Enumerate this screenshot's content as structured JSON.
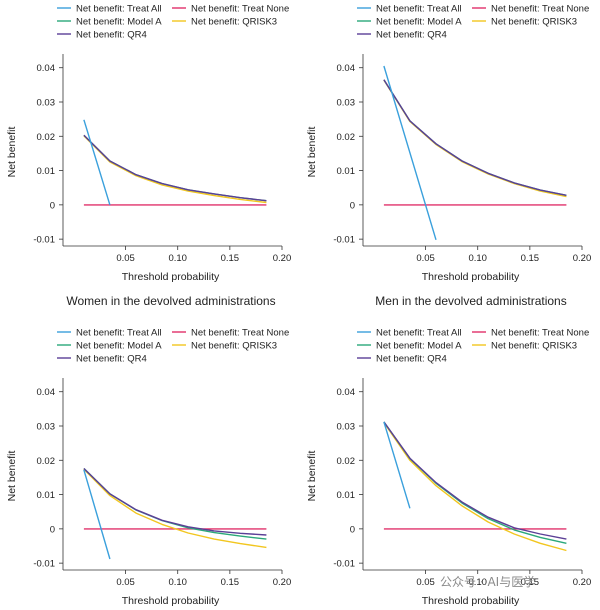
{
  "colors": {
    "treat_all": "#3aa0dc",
    "treat_none": "#e0306a",
    "model_a": "#2ba87a",
    "qrisk3": "#f2c61f",
    "qr4": "#5b3f96"
  },
  "watermark": "公众号 · AI与医学",
  "chart_data": [
    {
      "type": "line",
      "title": "",
      "xlabel": "Threshold probability",
      "ylabel": "Net benefit",
      "xlim": [
        -0.01,
        0.2
      ],
      "ylim": [
        -0.012,
        0.044
      ],
      "xticks": [
        0.05,
        0.1,
        0.15,
        0.2
      ],
      "xtick_labels": [
        "0.05",
        "0.10",
        "0.15",
        "0.20"
      ],
      "yticks": [
        -0.01,
        0,
        0.01,
        0.02,
        0.03,
        0.04
      ],
      "ytick_labels": [
        "-0.01",
        "0",
        "0.01",
        "0.02",
        "0.03",
        "0.04"
      ],
      "legend": [
        "Net benefit: Treat All",
        "Net benefit: Treat None",
        "Net benefit: Model A",
        "Net benefit: QRISK3",
        "Net benefit: QR4"
      ],
      "series": [
        {
          "name": "Net benefit: Treat All",
          "key": "treat_all",
          "x": [
            0.01,
            0.035
          ],
          "y": [
            0.0248,
            0.0
          ]
        },
        {
          "name": "Net benefit: Treat None",
          "key": "treat_none",
          "x": [
            0.01,
            0.185
          ],
          "y": [
            0,
            0
          ]
        },
        {
          "name": "Net benefit: Model A",
          "key": "model_a",
          "x": [
            0.01,
            0.035,
            0.06,
            0.085,
            0.11,
            0.135,
            0.16,
            0.185
          ],
          "y": [
            0.0203,
            0.0128,
            0.0088,
            0.0062,
            0.0044,
            0.0032,
            0.0021,
            0.0012
          ]
        },
        {
          "name": "Net benefit: QRISK3",
          "key": "qrisk3",
          "x": [
            0.01,
            0.035,
            0.06,
            0.085,
            0.11,
            0.135,
            0.16,
            0.185
          ],
          "y": [
            0.0201,
            0.0125,
            0.0085,
            0.0058,
            0.004,
            0.0027,
            0.0016,
            0.0007
          ]
        },
        {
          "name": "Net benefit: QR4",
          "key": "qr4",
          "x": [
            0.01,
            0.035,
            0.06,
            0.085,
            0.11,
            0.135,
            0.16,
            0.185
          ],
          "y": [
            0.0203,
            0.0128,
            0.0088,
            0.0062,
            0.0044,
            0.0032,
            0.0021,
            0.0012
          ]
        }
      ]
    },
    {
      "type": "line",
      "title": "",
      "xlabel": "Threshold probability",
      "ylabel": "Net benefit",
      "xlim": [
        -0.01,
        0.2
      ],
      "ylim": [
        -0.012,
        0.044
      ],
      "xticks": [
        0.05,
        0.1,
        0.15,
        0.2
      ],
      "xtick_labels": [
        "0.05",
        "0.10",
        "0.15",
        "0.20"
      ],
      "yticks": [
        -0.01,
        0,
        0.01,
        0.02,
        0.03,
        0.04
      ],
      "ytick_labels": [
        "-0.01",
        "0",
        "0.01",
        "0.02",
        "0.03",
        "0.04"
      ],
      "legend": [
        "Net benefit: Treat All",
        "Net benefit: Treat None",
        "Net benefit: Model A",
        "Net benefit: QRISK3",
        "Net benefit: QR4"
      ],
      "series": [
        {
          "name": "Net benefit: Treat All",
          "key": "treat_all",
          "x": [
            0.01,
            0.06
          ],
          "y": [
            0.0405,
            -0.0102
          ]
        },
        {
          "name": "Net benefit: Treat None",
          "key": "treat_none",
          "x": [
            0.01,
            0.185
          ],
          "y": [
            0,
            0
          ]
        },
        {
          "name": "Net benefit: Model A",
          "key": "model_a",
          "x": [
            0.01,
            0.035,
            0.06,
            0.085,
            0.11,
            0.135,
            0.16,
            0.185
          ],
          "y": [
            0.0365,
            0.0245,
            0.0178,
            0.0128,
            0.0092,
            0.0064,
            0.0043,
            0.0028
          ]
        },
        {
          "name": "Net benefit: QRISK3",
          "key": "qrisk3",
          "x": [
            0.01,
            0.035,
            0.06,
            0.085,
            0.11,
            0.135,
            0.16,
            0.185
          ],
          "y": [
            0.0364,
            0.0243,
            0.0176,
            0.0126,
            0.009,
            0.0062,
            0.004,
            0.0024
          ]
        },
        {
          "name": "Net benefit: QR4",
          "key": "qr4",
          "x": [
            0.01,
            0.035,
            0.06,
            0.085,
            0.11,
            0.135,
            0.16,
            0.185
          ],
          "y": [
            0.0365,
            0.0245,
            0.0178,
            0.0128,
            0.0092,
            0.0064,
            0.0043,
            0.0028
          ]
        }
      ]
    },
    {
      "type": "line",
      "title": "Women in the devolved administrations",
      "xlabel": "Threshold probability",
      "ylabel": "Net benefit",
      "xlim": [
        -0.01,
        0.2
      ],
      "ylim": [
        -0.012,
        0.044
      ],
      "xticks": [
        0.05,
        0.1,
        0.15,
        0.2
      ],
      "xtick_labels": [
        "0.05",
        "0.10",
        "0.15",
        "0.20"
      ],
      "yticks": [
        -0.01,
        0,
        0.01,
        0.02,
        0.03,
        0.04
      ],
      "ytick_labels": [
        "-0.01",
        "0",
        "0.01",
        "0.02",
        "0.03",
        "0.04"
      ],
      "legend": [
        "Net benefit: Treat All",
        "Net benefit: Treat None",
        "Net benefit: Model A",
        "Net benefit: QRISK3",
        "Net benefit: QR4"
      ],
      "series": [
        {
          "name": "Net benefit: Treat All",
          "key": "treat_all",
          "x": [
            0.01,
            0.035
          ],
          "y": [
            0.0172,
            -0.0088
          ]
        },
        {
          "name": "Net benefit: Treat None",
          "key": "treat_none",
          "x": [
            0.01,
            0.185
          ],
          "y": [
            0,
            0
          ]
        },
        {
          "name": "Net benefit: Model A",
          "key": "model_a",
          "x": [
            0.01,
            0.035,
            0.06,
            0.085,
            0.11,
            0.135,
            0.16,
            0.185
          ],
          "y": [
            0.0176,
            0.0102,
            0.0055,
            0.0024,
            0.0003,
            -0.0011,
            -0.0021,
            -0.003
          ]
        },
        {
          "name": "Net benefit: QRISK3",
          "key": "qrisk3",
          "x": [
            0.01,
            0.035,
            0.06,
            0.085,
            0.11,
            0.135,
            0.16,
            0.185
          ],
          "y": [
            0.0174,
            0.0097,
            0.0046,
            0.0013,
            -0.0012,
            -0.003,
            -0.0043,
            -0.0054
          ]
        },
        {
          "name": "Net benefit: QR4",
          "key": "qr4",
          "x": [
            0.01,
            0.035,
            0.06,
            0.085,
            0.11,
            0.135,
            0.16,
            0.185
          ],
          "y": [
            0.0176,
            0.0102,
            0.0056,
            0.0025,
            0.0006,
            -0.0006,
            -0.0013,
            -0.0018
          ]
        }
      ]
    },
    {
      "type": "line",
      "title": "Men in the devolved administrations",
      "xlabel": "Threshold probability",
      "ylabel": "Net benefit",
      "xlim": [
        -0.01,
        0.2
      ],
      "ylim": [
        -0.012,
        0.044
      ],
      "xticks": [
        0.05,
        0.1,
        0.15,
        0.2
      ],
      "xtick_labels": [
        "0.05",
        "0.10",
        "0.15",
        "0.20"
      ],
      "yticks": [
        -0.01,
        0,
        0.01,
        0.02,
        0.03,
        0.04
      ],
      "ytick_labels": [
        "-0.01",
        "0",
        "0.01",
        "0.02",
        "0.03",
        "0.04"
      ],
      "legend": [
        "Net benefit: Treat All",
        "Net benefit: Treat None",
        "Net benefit: Model A",
        "Net benefit: QRISK3",
        "Net benefit: QR4"
      ],
      "series": [
        {
          "name": "Net benefit: Treat All",
          "key": "treat_all",
          "x": [
            0.01,
            0.035
          ],
          "y": [
            0.0312,
            0.006
          ]
        },
        {
          "name": "Net benefit: Treat None",
          "key": "treat_none",
          "x": [
            0.01,
            0.185
          ],
          "y": [
            0,
            0
          ]
        },
        {
          "name": "Net benefit: Model A",
          "key": "model_a",
          "x": [
            0.01,
            0.035,
            0.06,
            0.085,
            0.11,
            0.135,
            0.16,
            0.185
          ],
          "y": [
            0.0312,
            0.0205,
            0.0133,
            0.0075,
            0.003,
            -0.0003,
            -0.0025,
            -0.0042
          ]
        },
        {
          "name": "Net benefit: QRISK3",
          "key": "qrisk3",
          "x": [
            0.01,
            0.035,
            0.06,
            0.085,
            0.11,
            0.135,
            0.16,
            0.185
          ],
          "y": [
            0.031,
            0.02,
            0.0126,
            0.0067,
            0.002,
            -0.0015,
            -0.0042,
            -0.0063
          ]
        },
        {
          "name": "Net benefit: QR4",
          "key": "qr4",
          "x": [
            0.01,
            0.035,
            0.06,
            0.085,
            0.11,
            0.135,
            0.16,
            0.185
          ],
          "y": [
            0.0312,
            0.0206,
            0.0135,
            0.0078,
            0.0034,
            0.0003,
            -0.0015,
            -0.003
          ]
        }
      ]
    }
  ]
}
